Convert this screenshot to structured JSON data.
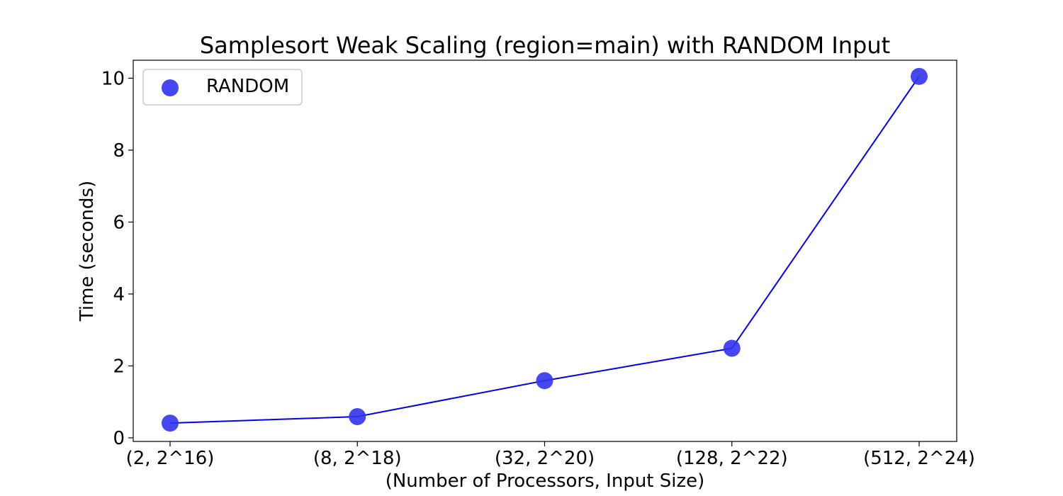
{
  "chart_data": {
    "type": "line",
    "title": "Samplesort Weak Scaling (region=main) with RANDOM Input",
    "xlabel": "(Number of Processors, Input Size)",
    "ylabel": "Time (seconds)",
    "categories": [
      "(2, 2^16)",
      "(8, 2^18)",
      "(32, 2^20)",
      "(128, 2^22)",
      "(512, 2^24)"
    ],
    "series": [
      {
        "name": "RANDOM",
        "values": [
          0.41,
          0.59,
          1.59,
          2.49,
          10.05
        ],
        "color": "#0000ee",
        "marker_color": "#3333ee"
      }
    ],
    "yticks": [
      0,
      2,
      4,
      6,
      8,
      10
    ],
    "ylim": [
      -0.1,
      10.5
    ],
    "grid": false,
    "legend": "top-left"
  }
}
